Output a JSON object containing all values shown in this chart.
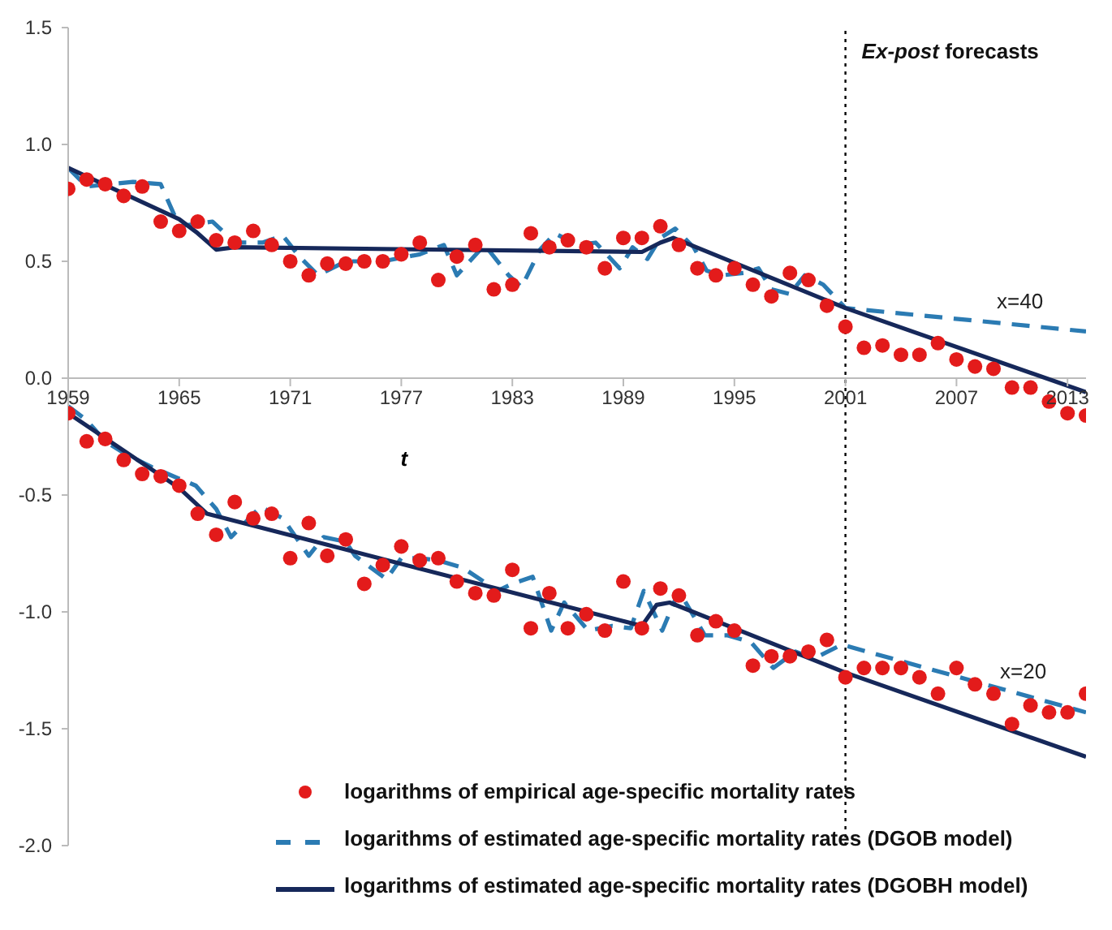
{
  "chart_data": {
    "type": "scatter",
    "xlabel": "t",
    "xlim": [
      1959,
      2014
    ],
    "xticks": [
      1959,
      1965,
      1971,
      1977,
      1983,
      1989,
      1995,
      2001,
      2007,
      2013
    ],
    "ylim": [
      -2,
      1.5
    ],
    "yticks": [
      {
        "value": -2,
        "label": "-2.0"
      },
      -1.5,
      {
        "value": -1,
        "label": "-1.0"
      },
      -0.5,
      {
        "value": 0,
        "label": "0.0"
      },
      0.5,
      {
        "value": 1,
        "label": "1.0"
      },
      1.5
    ],
    "legend": "bottom",
    "ref_lines": [
      {
        "axis": "x",
        "value": 2001,
        "label": "Ex-post forecasts",
        "line_style": "dotted",
        "color": "#000000"
      }
    ],
    "annotations": [
      "x=40",
      "x=20"
    ],
    "series": [
      {
        "type": "scatter",
        "name": "logarithms of empirical age-specific mortality rates",
        "color": "#e31b1b",
        "marker": "circle",
        "x": [
          1959,
          1960,
          1961,
          1962,
          1963,
          1964,
          1965,
          1966,
          1967,
          1968,
          1969,
          1970,
          1971,
          1972,
          1973,
          1974,
          1975,
          1976,
          1977,
          1978,
          1979,
          1980,
          1981,
          1982,
          1983,
          1984,
          1985,
          1986,
          1987,
          1988,
          1989,
          1990,
          1991,
          1992,
          1993,
          1994,
          1995,
          1996,
          1997,
          1998,
          1999,
          2000,
          2001,
          2002,
          2003,
          2004,
          2005,
          2006,
          2007,
          2008,
          2009,
          2010,
          2011,
          2012,
          2013,
          2014
        ],
        "values": [
          0.81,
          0.85,
          0.83,
          0.78,
          0.82,
          0.67,
          0.63,
          0.67,
          0.59,
          0.58,
          0.63,
          0.57,
          0.5,
          0.44,
          0.49,
          0.49,
          0.5,
          0.5,
          0.53,
          0.58,
          0.42,
          0.52,
          0.57,
          0.38,
          0.4,
          0.62,
          0.56,
          0.59,
          0.56,
          0.47,
          0.6,
          0.6,
          0.65,
          0.57,
          0.47,
          0.44,
          0.47,
          0.4,
          0.35,
          0.45,
          0.42,
          0.31,
          0.22,
          0.13,
          0.14,
          0.1,
          0.1,
          0.15,
          0.08,
          0.05,
          0.04,
          -0.04,
          -0.04,
          -0.1,
          -0.15,
          -0.16
        ]
      },
      {
        "type": "line",
        "name": "logarithms of estimated age-specific mortality rates (DGOB model)",
        "color": "#2b7bb3",
        "line_style": "dashed",
        "marker": "none",
        "x": [
          1959,
          1960,
          1962.5,
          1964,
          1965,
          1966.8,
          1968,
          1969.5,
          1970.6,
          1971.5,
          1972.5,
          1974,
          1976,
          1978,
          1979.3,
          1980,
          1981.5,
          1982.8,
          1983.5,
          1984.5,
          1985.3,
          1986.5,
          1987.5,
          1988.8,
          1989.5,
          1990.3,
          1991,
          1991.8,
          1992.8,
          1993.5,
          1994.3,
          1995.5,
          1996.3,
          1997,
          1998,
          1998.8,
          1999.8,
          2001,
          2014
        ],
        "values": [
          0.9,
          0.82,
          0.84,
          0.83,
          0.65,
          0.67,
          0.58,
          0.58,
          0.61,
          0.52,
          0.44,
          0.5,
          0.5,
          0.53,
          0.57,
          0.44,
          0.57,
          0.44,
          0.39,
          0.55,
          0.62,
          0.57,
          0.58,
          0.47,
          0.56,
          0.51,
          0.6,
          0.64,
          0.56,
          0.46,
          0.44,
          0.45,
          0.47,
          0.38,
          0.36,
          0.44,
          0.4,
          0.3,
          0.2
        ]
      },
      {
        "type": "line",
        "name": "logarithms of estimated age-specific mortality rates (DGOBH model)",
        "color": "#16285a",
        "line_style": "solid",
        "marker": "none",
        "x": [
          1959,
          1965,
          1966,
          1967,
          1968,
          1990,
          1991,
          1991.7,
          2001,
          2014
        ],
        "values": [
          0.9,
          0.68,
          0.62,
          0.55,
          0.56,
          0.54,
          0.58,
          0.6,
          0.3,
          -0.06
        ]
      },
      {
        "type": "scatter",
        "color": "#e31b1b",
        "marker": "circle",
        "x": [
          1959,
          1960,
          1961,
          1962,
          1963,
          1964,
          1965,
          1966,
          1967,
          1968,
          1969,
          1970,
          1971,
          1972,
          1973,
          1974,
          1975,
          1976,
          1977,
          1978,
          1979,
          1980,
          1981,
          1982,
          1983,
          1984,
          1985,
          1986,
          1987,
          1988,
          1989,
          1990,
          1991,
          1992,
          1993,
          1994,
          1995,
          1996,
          1997,
          1998,
          1999,
          2000,
          2001,
          2002,
          2003,
          2004,
          2005,
          2006,
          2007,
          2008,
          2009,
          2010,
          2011,
          2012,
          2013,
          2014
        ],
        "values": [
          -0.15,
          -0.27,
          -0.26,
          -0.35,
          -0.41,
          -0.42,
          -0.46,
          -0.58,
          -0.67,
          -0.53,
          -0.6,
          -0.58,
          -0.77,
          -0.62,
          -0.76,
          -0.69,
          -0.88,
          -0.8,
          -0.72,
          -0.78,
          -0.77,
          -0.87,
          -0.92,
          -0.93,
          -0.82,
          -1.07,
          -0.92,
          -1.07,
          -1.01,
          -1.08,
          -0.87,
          -1.07,
          -0.9,
          -0.93,
          -1.1,
          -1.04,
          -1.08,
          -1.23,
          -1.19,
          -1.19,
          -1.17,
          -1.12,
          -1.28,
          -1.24,
          -1.24,
          -1.24,
          -1.28,
          -1.35,
          -1.24,
          -1.31,
          -1.35,
          -1.48,
          -1.4,
          -1.43,
          -1.43,
          -1.35
        ]
      },
      {
        "type": "line",
        "color": "#2b7bb3",
        "line_style": "dashed",
        "marker": "none",
        "x": [
          1959,
          1960,
          1961,
          1962,
          1963.5,
          1965.9,
          1967,
          1967.8,
          1969.4,
          1970.6,
          1972,
          1972.8,
          1974,
          1974.5,
          1976.2,
          1977,
          1978,
          1979,
          1980.3,
          1982.2,
          1983,
          1984.1,
          1985.1,
          1985.8,
          1987.1,
          1988.4,
          1989.4,
          1990.1,
          1991.1,
          1992,
          1993.4,
          1994.6,
          1995.9,
          1997.1,
          1998.3,
          1999.3,
          2000.8,
          2014
        ],
        "values": [
          -0.12,
          -0.18,
          -0.27,
          -0.32,
          -0.38,
          -0.46,
          -0.56,
          -0.68,
          -0.55,
          -0.6,
          -0.76,
          -0.68,
          -0.7,
          -0.76,
          -0.86,
          -0.77,
          -0.77,
          -0.78,
          -0.81,
          -0.91,
          -0.88,
          -0.85,
          -1.08,
          -0.96,
          -1.08,
          -1.06,
          -1.07,
          -0.91,
          -1.08,
          -0.91,
          -1.1,
          -1.1,
          -1.13,
          -1.24,
          -1.17,
          -1.2,
          -1.14,
          -1.43
        ]
      },
      {
        "type": "line",
        "color": "#16285a",
        "line_style": "solid",
        "marker": "none",
        "x": [
          1959,
          1965,
          1966.5,
          1990,
          1990.8,
          1991.5,
          2001,
          2014
        ],
        "values": [
          -0.15,
          -0.47,
          -0.58,
          -1.06,
          -0.97,
          -0.96,
          -1.26,
          -1.62
        ]
      }
    ]
  }
}
